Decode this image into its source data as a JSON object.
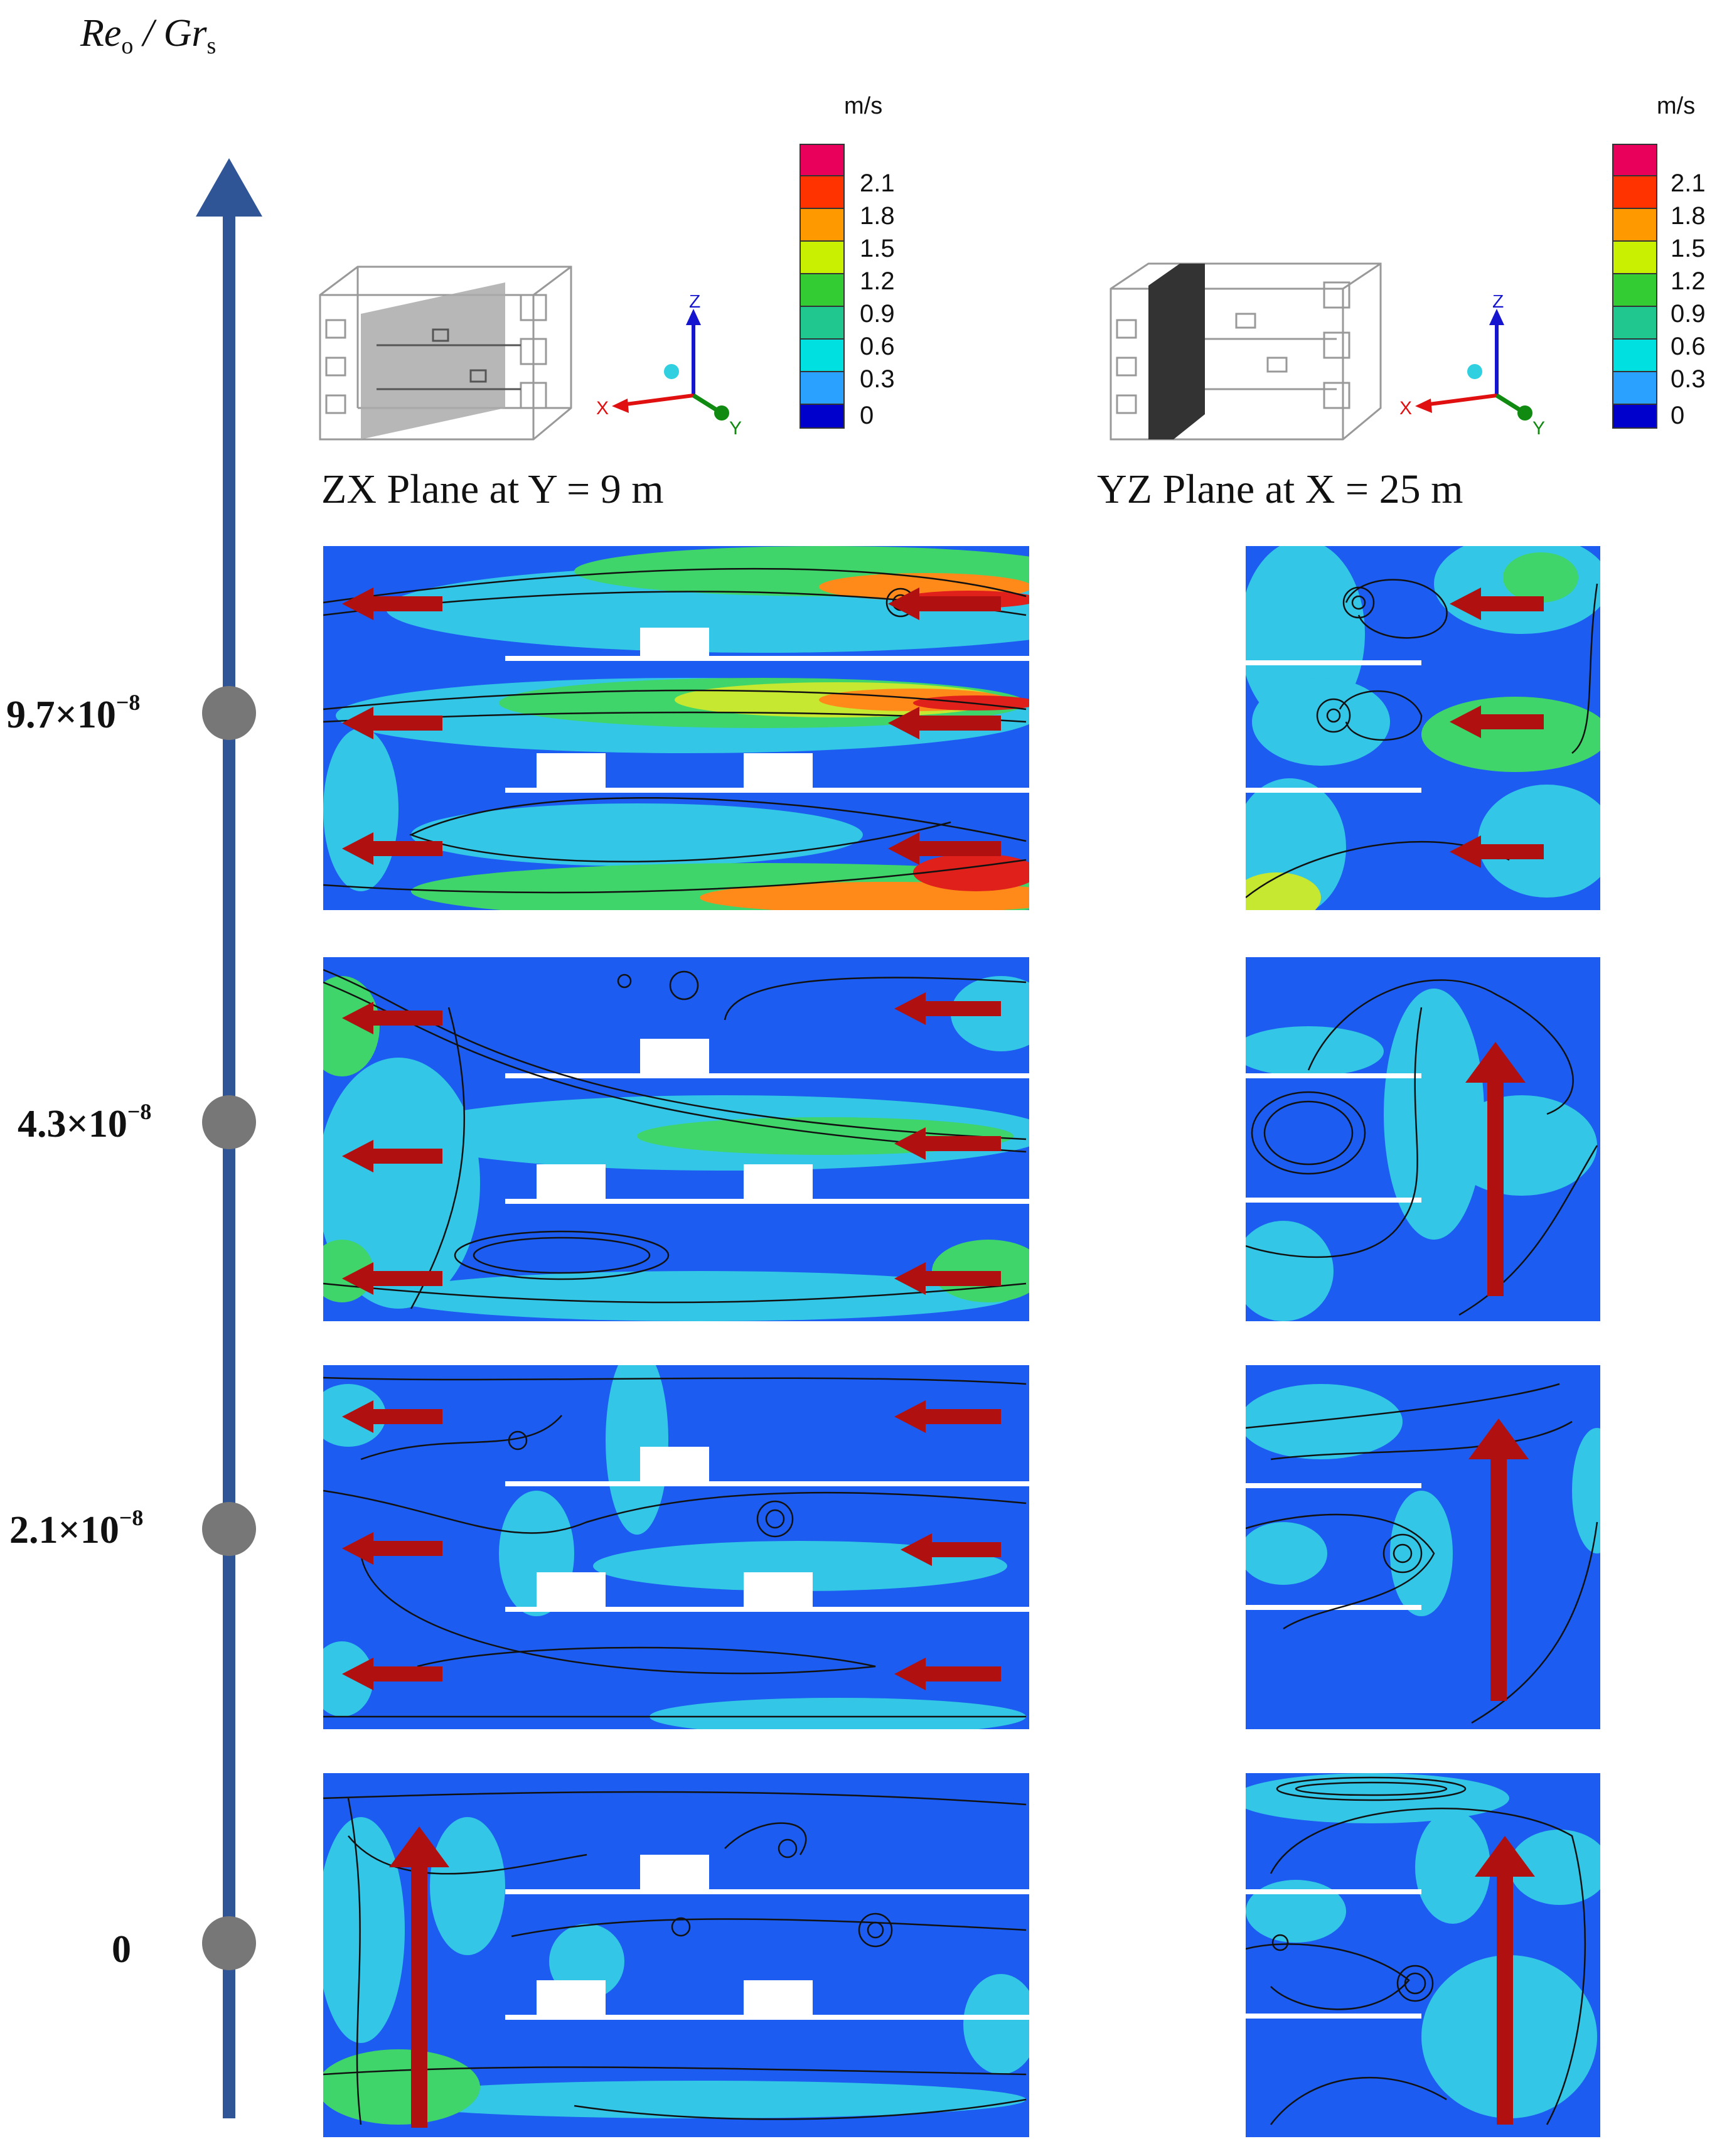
{
  "axis": {
    "title_main": "Re",
    "title_sub1": "o",
    "title_sep": " / Gr",
    "title_sub2": "s",
    "color": "#2f5597",
    "marker_color": "#777777",
    "levels": [
      {
        "mantissa": "9.7×10",
        "exponent": "−8"
      },
      {
        "mantissa": "4.3×10",
        "exponent": "−8"
      },
      {
        "mantissa": "2.1×10",
        "exponent": "−8"
      },
      {
        "mantissa": "0",
        "exponent": ""
      }
    ]
  },
  "columns": {
    "left_title": "ZX Plane at Y = 9 m",
    "right_title": "YZ Plane at X = 25 m"
  },
  "colorbar": {
    "unit": "m/s",
    "ticks": [
      "2.1",
      "1.8",
      "1.5",
      "1.2",
      "0.9",
      "0.6",
      "0.3",
      "0"
    ],
    "colors": [
      "#e8005a",
      "#ff3300",
      "#ff9900",
      "#c8f000",
      "#33cc33",
      "#20c890",
      "#00e0e0",
      "#2aa0ff",
      "#0000cc"
    ]
  },
  "triad": {
    "x_label": "X",
    "y_label": "Y",
    "z_label": "Z"
  },
  "flow_colors": {
    "low": "#1c5cf0",
    "mid": "#33c6e6",
    "green": "#3fd56a",
    "yellow": "#c6e830",
    "orange": "#ff8a1a",
    "red": "#e0201a",
    "arrow": "#b01010"
  }
}
